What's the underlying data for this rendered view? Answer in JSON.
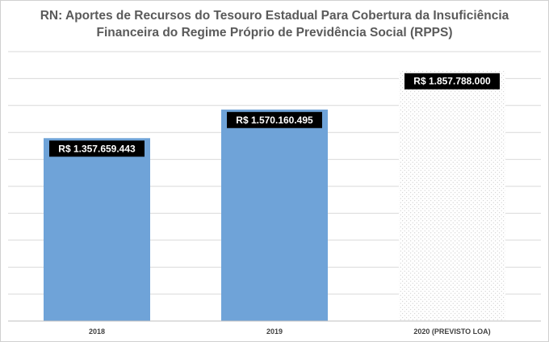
{
  "chart_data": {
    "type": "bar",
    "title_lines": [
      "RN: Aportes de Recursos do Tesouro Estadual Para Cobertura da Insuficiência",
      "Financeira do Regime Próprio de Previdência Social (RPPS)"
    ],
    "categories": [
      "2018",
      "2019",
      "2020  (PREVISTO LOA)"
    ],
    "values": [
      1357659443,
      1570160495,
      1857788000
    ],
    "data_labels": [
      "R$ 1.357.659.443",
      "R$ 1.570.160.495",
      "R$ 1.857.788.000"
    ],
    "ylim": [
      0,
      2000000000
    ],
    "grid": true,
    "colors": {
      "bar": "#6fa3d8",
      "projected_bar_fill": "#ffffff",
      "projected_bar_dots": "#bfbfbf",
      "gridline": "#d9d9d9",
      "axis": "#bfbfbf"
    },
    "patterns": [
      "solid",
      "solid",
      "dotted"
    ]
  }
}
